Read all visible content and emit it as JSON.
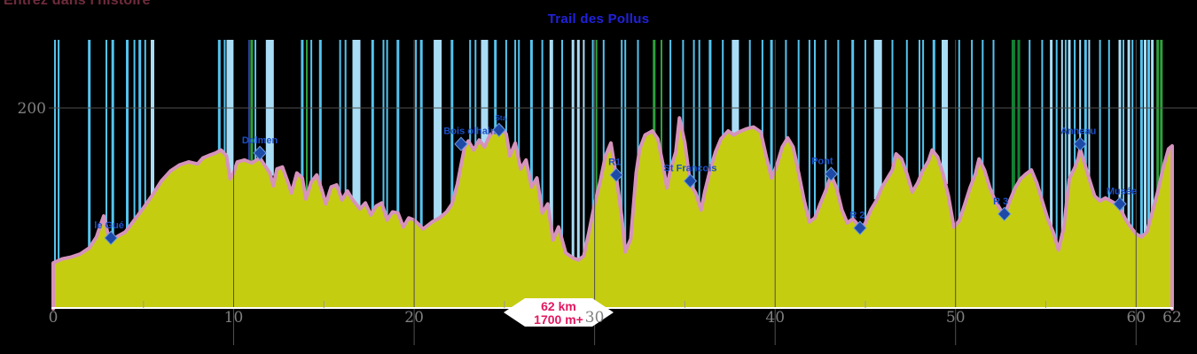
{
  "header": {
    "site_tagline": "Entrez dans l'histoire"
  },
  "chart": {
    "title": "Trail des Pollus"
  },
  "badge": {
    "distance": "62 km",
    "elevation_gain": "1700 m+"
  },
  "colors": {
    "profile_fill": "#c5cd11",
    "profile_stroke": "#d693bb",
    "bar_lb": "#a9dcf5",
    "bar_cb": "#54c3ee",
    "bar_gr": "#2fa03c",
    "bar_dg": "#128233",
    "bar_nv": "#2c3fa0",
    "grid": "#4f4f4f",
    "tick": "#9a9a9a",
    "axis_line": "#ffffff",
    "axis_label": "#7f7f7f",
    "title": "#2121dd",
    "waypoint_label": "#1b50c8",
    "diamond_fill": "#1c4aa6",
    "diamond_edge": "#6f9ede",
    "badge_fill": "#ffffff",
    "badge_text": "#e21760",
    "tagline": "#6f2b3c"
  },
  "chart_data": {
    "type": "area",
    "title": "Trail des Pollus",
    "x_unit": "km",
    "y_unit": "m",
    "distance_km": 62,
    "elevation_gain_m": 1700,
    "x_range": [
      0,
      62
    ],
    "y_range_m": [
      0,
      268
    ],
    "x_ticks": [
      0,
      10,
      20,
      30,
      40,
      50,
      60,
      62
    ],
    "x_minor_ticks": [
      5,
      15,
      25,
      35,
      45,
      55
    ],
    "x_gridlines": [
      10,
      20,
      30,
      40,
      50,
      60
    ],
    "y_gridlines": [
      {
        "value": 200,
        "label": "200"
      }
    ],
    "grid": true,
    "legend": false,
    "profile_km_elev": [
      [
        0,
        45
      ],
      [
        0.5,
        49
      ],
      [
        1,
        51
      ],
      [
        1.5,
        54
      ],
      [
        2,
        60
      ],
      [
        2.4,
        71
      ],
      [
        2.7,
        87
      ],
      [
        2.8,
        92
      ],
      [
        3,
        76
      ],
      [
        3.2,
        67
      ],
      [
        3.6,
        72
      ],
      [
        4,
        76
      ],
      [
        4.5,
        88
      ],
      [
        5,
        100
      ],
      [
        5.5,
        113
      ],
      [
        6,
        127
      ],
      [
        6.5,
        137
      ],
      [
        7,
        143
      ],
      [
        7.5,
        146
      ],
      [
        8,
        144
      ],
      [
        8.3,
        150
      ],
      [
        8.7,
        153
      ],
      [
        9,
        155
      ],
      [
        9.3,
        158
      ],
      [
        9.6,
        152
      ],
      [
        9.8,
        129
      ],
      [
        10,
        135
      ],
      [
        10.2,
        146
      ],
      [
        10.6,
        148
      ],
      [
        11,
        145
      ],
      [
        11.45,
        150
      ],
      [
        11.7,
        143
      ],
      [
        12,
        135
      ],
      [
        12.2,
        122
      ],
      [
        12.4,
        139
      ],
      [
        12.7,
        141
      ],
      [
        13,
        126
      ],
      [
        13.2,
        115
      ],
      [
        13.5,
        135
      ],
      [
        13.8,
        130
      ],
      [
        14,
        109
      ],
      [
        14.3,
        126
      ],
      [
        14.6,
        133
      ],
      [
        14.9,
        117
      ],
      [
        15.1,
        104
      ],
      [
        15.4,
        121
      ],
      [
        15.7,
        123
      ],
      [
        16,
        108
      ],
      [
        16.3,
        117
      ],
      [
        16.6,
        108
      ],
      [
        17,
        99
      ],
      [
        17.3,
        105
      ],
      [
        17.6,
        93
      ],
      [
        17.9,
        102
      ],
      [
        18.2,
        105
      ],
      [
        18.5,
        88
      ],
      [
        18.8,
        96
      ],
      [
        19.1,
        95
      ],
      [
        19.4,
        81
      ],
      [
        19.7,
        90
      ],
      [
        20,
        88
      ],
      [
        20.5,
        79
      ],
      [
        21,
        86
      ],
      [
        21.4,
        90
      ],
      [
        21.8,
        96
      ],
      [
        22.1,
        104
      ],
      [
        22.4,
        124
      ],
      [
        22.6,
        143
      ],
      [
        22.8,
        161
      ],
      [
        23,
        167
      ],
      [
        23.3,
        158
      ],
      [
        23.6,
        168
      ],
      [
        23.9,
        161
      ],
      [
        24.2,
        173
      ],
      [
        24.5,
        177
      ],
      [
        24.8,
        181
      ],
      [
        25.1,
        174
      ],
      [
        25.3,
        152
      ],
      [
        25.6,
        165
      ],
      [
        25.9,
        139
      ],
      [
        26.2,
        148
      ],
      [
        26.5,
        121
      ],
      [
        26.8,
        130
      ],
      [
        27.1,
        95
      ],
      [
        27.4,
        104
      ],
      [
        27.7,
        68
      ],
      [
        28,
        81
      ],
      [
        28.4,
        55
      ],
      [
        28.8,
        50
      ],
      [
        29.1,
        48
      ],
      [
        29.4,
        52
      ],
      [
        29.7,
        77
      ],
      [
        30,
        104
      ],
      [
        30.3,
        126
      ],
      [
        30.6,
        152
      ],
      [
        30.9,
        165
      ],
      [
        31.2,
        131
      ],
      [
        31.5,
        91
      ],
      [
        31.7,
        56
      ],
      [
        32,
        69
      ],
      [
        32.3,
        135
      ],
      [
        32.5,
        159
      ],
      [
        32.8,
        173
      ],
      [
        33.2,
        177
      ],
      [
        33.5,
        169
      ],
      [
        33.8,
        142
      ],
      [
        34,
        120
      ],
      [
        34.2,
        138
      ],
      [
        34.5,
        156
      ],
      [
        34.7,
        190
      ],
      [
        35,
        165
      ],
      [
        35.3,
        124
      ],
      [
        35.6,
        115
      ],
      [
        35.9,
        98
      ],
      [
        36.1,
        116
      ],
      [
        36.4,
        138
      ],
      [
        36.7,
        156
      ],
      [
        37,
        169
      ],
      [
        37.4,
        177
      ],
      [
        37.7,
        173
      ],
      [
        38,
        176
      ],
      [
        38.4,
        179
      ],
      [
        38.8,
        181
      ],
      [
        39.2,
        176
      ],
      [
        39.5,
        152
      ],
      [
        39.8,
        130
      ],
      [
        40.1,
        143
      ],
      [
        40.4,
        161
      ],
      [
        40.7,
        170
      ],
      [
        41,
        161
      ],
      [
        41.3,
        135
      ],
      [
        41.6,
        108
      ],
      [
        41.9,
        86
      ],
      [
        42.2,
        90
      ],
      [
        42.5,
        104
      ],
      [
        42.8,
        117
      ],
      [
        43.1,
        133
      ],
      [
        43.4,
        120
      ],
      [
        43.7,
        98
      ],
      [
        44,
        85
      ],
      [
        44.3,
        89
      ],
      [
        44.5,
        85
      ],
      [
        44.7,
        76
      ],
      [
        45,
        85
      ],
      [
        45.3,
        98
      ],
      [
        45.6,
        107
      ],
      [
        45.9,
        120
      ],
      [
        46.2,
        129
      ],
      [
        46.5,
        138
      ],
      [
        46.7,
        154
      ],
      [
        47,
        149
      ],
      [
        47.3,
        134
      ],
      [
        47.6,
        116
      ],
      [
        47.9,
        125
      ],
      [
        48.2,
        138
      ],
      [
        48.5,
        147
      ],
      [
        48.7,
        158
      ],
      [
        49,
        151
      ],
      [
        49.3,
        134
      ],
      [
        49.6,
        112
      ],
      [
        49.9,
        81
      ],
      [
        50.2,
        87
      ],
      [
        50.5,
        103
      ],
      [
        50.8,
        120
      ],
      [
        51.1,
        134
      ],
      [
        51.3,
        149
      ],
      [
        51.6,
        138
      ],
      [
        51.9,
        120
      ],
      [
        52.2,
        107
      ],
      [
        52.5,
        98
      ],
      [
        52.7,
        92
      ],
      [
        53,
        107
      ],
      [
        53.3,
        120
      ],
      [
        53.6,
        129
      ],
      [
        53.9,
        134
      ],
      [
        54.2,
        138
      ],
      [
        54.5,
        125
      ],
      [
        54.8,
        107
      ],
      [
        55.1,
        89
      ],
      [
        55.4,
        76
      ],
      [
        55.7,
        58
      ],
      [
        56,
        81
      ],
      [
        56.3,
        129
      ],
      [
        56.6,
        140
      ],
      [
        56.8,
        150
      ],
      [
        56.9,
        159
      ],
      [
        57.1,
        147
      ],
      [
        57.4,
        129
      ],
      [
        57.7,
        112
      ],
      [
        58,
        107
      ],
      [
        58.3,
        110
      ],
      [
        58.6,
        107
      ],
      [
        58.9,
        104
      ],
      [
        59.1,
        100
      ],
      [
        59.4,
        89
      ],
      [
        59.7,
        81
      ],
      [
        60,
        74
      ],
      [
        60.3,
        71
      ],
      [
        60.6,
        76
      ],
      [
        60.9,
        96
      ],
      [
        61.2,
        116
      ],
      [
        61.5,
        140
      ],
      [
        61.8,
        159
      ],
      [
        62,
        162
      ]
    ],
    "waypoints": [
      {
        "label": "le Gué",
        "km": 3.2,
        "elev": 70,
        "dx": -2
      },
      {
        "label": "Dolmen",
        "km": 11.45,
        "elev": 155,
        "dx": 0
      },
      {
        "label": "Bois olhain",
        "km": 22.6,
        "elev": 164,
        "dx": 10
      },
      {
        "label": "Sta",
        "km": 24.7,
        "elev": 178,
        "dx": 2,
        "small": true
      },
      {
        "label": "R1",
        "km": 31.2,
        "elev": 133,
        "dx": -2
      },
      {
        "label": "St Francois",
        "km": 35.3,
        "elev": 127,
        "dx": 0
      },
      {
        "label": "Pont",
        "km": 43.1,
        "elev": 134,
        "dx": -10
      },
      {
        "label": "R 2",
        "km": 44.7,
        "elev": 80,
        "dx": -3
      },
      {
        "label": "R 3",
        "km": 52.7,
        "elev": 94,
        "dx": -4
      },
      {
        "label": "Anneau",
        "km": 56.9,
        "elev": 164,
        "dx": -2
      },
      {
        "label": "Musée",
        "km": 59.1,
        "elev": 104,
        "dx": 2
      }
    ],
    "event_bars": [
      [
        0.1,
        2,
        "cb"
      ],
      [
        0.3,
        2,
        "cb"
      ],
      [
        2,
        3,
        "cb"
      ],
      [
        2.95,
        2,
        "cb"
      ],
      [
        3.3,
        3,
        "cb"
      ],
      [
        4.1,
        3,
        "cb"
      ],
      [
        4.5,
        2,
        "cb"
      ],
      [
        4.8,
        3,
        "cb"
      ],
      [
        5.1,
        2,
        "cb"
      ],
      [
        5.5,
        4,
        "lb"
      ],
      [
        9.2,
        3,
        "cb"
      ],
      [
        9.5,
        2,
        "cb"
      ],
      [
        9.8,
        8,
        "lb"
      ],
      [
        10.85,
        2,
        "nv"
      ],
      [
        11,
        3,
        "gr"
      ],
      [
        11.2,
        2,
        "cb"
      ],
      [
        12,
        9,
        "lb"
      ],
      [
        13.8,
        3,
        "cb"
      ],
      [
        14.05,
        2,
        "gr"
      ],
      [
        14.3,
        2,
        "cb"
      ],
      [
        14.8,
        3,
        "cb"
      ],
      [
        15.9,
        2,
        "cb"
      ],
      [
        16.2,
        2,
        "cb"
      ],
      [
        16.8,
        9,
        "lb"
      ],
      [
        17.7,
        3,
        "cb"
      ],
      [
        18.3,
        2,
        "cb"
      ],
      [
        18.5,
        2,
        "cb"
      ],
      [
        19.1,
        3,
        "cb"
      ],
      [
        20.1,
        2,
        "cb"
      ],
      [
        20.4,
        3,
        "cb"
      ],
      [
        21.3,
        9,
        "lb"
      ],
      [
        22.1,
        3,
        "cb"
      ],
      [
        23.1,
        2,
        "cb"
      ],
      [
        23.4,
        2,
        "cb"
      ],
      [
        23.9,
        8,
        "lb"
      ],
      [
        24.5,
        3,
        "cb"
      ],
      [
        25.1,
        2,
        "cb"
      ],
      [
        25.6,
        2,
        "cb"
      ],
      [
        25.8,
        2,
        "cb"
      ],
      [
        26.5,
        3,
        "cb"
      ],
      [
        27.1,
        2,
        "cb"
      ],
      [
        27.6,
        4,
        "lb"
      ],
      [
        28.2,
        2,
        "cb"
      ],
      [
        28.8,
        3,
        "lb"
      ],
      [
        29.1,
        3,
        "lb"
      ],
      [
        29.4,
        2,
        "lb"
      ],
      [
        29.9,
        2,
        "cb"
      ],
      [
        30.1,
        2,
        "gr"
      ],
      [
        30.5,
        2,
        "cb"
      ],
      [
        31.5,
        2,
        "cb"
      ],
      [
        31.7,
        2,
        "cb"
      ],
      [
        32.4,
        2,
        "cb"
      ],
      [
        33.3,
        3,
        "gr"
      ],
      [
        33.7,
        2,
        "gr"
      ],
      [
        34.2,
        2,
        "cb"
      ],
      [
        34.9,
        2,
        "cb"
      ],
      [
        35.5,
        2,
        "cb"
      ],
      [
        35.8,
        2,
        "cb"
      ],
      [
        36.4,
        3,
        "cb"
      ],
      [
        37.1,
        2,
        "cb"
      ],
      [
        37.8,
        8,
        "lb"
      ],
      [
        38.6,
        2,
        "cb"
      ],
      [
        39.3,
        2,
        "cb"
      ],
      [
        39.8,
        3,
        "cb"
      ],
      [
        40.6,
        2,
        "cb"
      ],
      [
        41.3,
        2,
        "cb"
      ],
      [
        41.9,
        2,
        "cb"
      ],
      [
        42.2,
        2,
        "cb"
      ],
      [
        42.8,
        2,
        "cb"
      ],
      [
        43.5,
        2,
        "cb"
      ],
      [
        44.3,
        3,
        "cb"
      ],
      [
        45,
        2,
        "cb"
      ],
      [
        45.7,
        9,
        "lb"
      ],
      [
        46.5,
        2,
        "cb"
      ],
      [
        47.3,
        2,
        "cb"
      ],
      [
        48,
        2,
        "cb"
      ],
      [
        48.2,
        2,
        "cb"
      ],
      [
        48.8,
        3,
        "cb"
      ],
      [
        49.4,
        7,
        "lb"
      ],
      [
        50.2,
        2,
        "cb"
      ],
      [
        50.9,
        2,
        "cb"
      ],
      [
        51.5,
        2,
        "cb"
      ],
      [
        52.1,
        2,
        "cb"
      ],
      [
        53.2,
        4,
        "dg"
      ],
      [
        53.5,
        3,
        "dg"
      ],
      [
        54.1,
        2,
        "cb"
      ],
      [
        54.8,
        2,
        "cb"
      ],
      [
        55.3,
        3,
        "lb"
      ],
      [
        55.6,
        2,
        "cb"
      ],
      [
        55.9,
        2,
        "lb"
      ],
      [
        56.1,
        2,
        "cb"
      ],
      [
        56.3,
        3,
        "lb"
      ],
      [
        56.6,
        2,
        "cb"
      ],
      [
        56.9,
        2,
        "lb"
      ],
      [
        57.2,
        3,
        "cb"
      ],
      [
        57.4,
        2,
        "lb"
      ],
      [
        58,
        2,
        "cb"
      ],
      [
        58.5,
        2,
        "cb"
      ],
      [
        59.1,
        3,
        "lb"
      ],
      [
        59.3,
        2,
        "cb"
      ],
      [
        59.6,
        3,
        "lb"
      ],
      [
        59.8,
        2,
        "cb"
      ],
      [
        60.3,
        3,
        "cb"
      ],
      [
        60.5,
        3,
        "lb"
      ],
      [
        60.7,
        3,
        "cb"
      ],
      [
        60.9,
        3,
        "lb"
      ],
      [
        61.2,
        3,
        "gr"
      ],
      [
        61.4,
        3,
        "gr"
      ]
    ]
  }
}
